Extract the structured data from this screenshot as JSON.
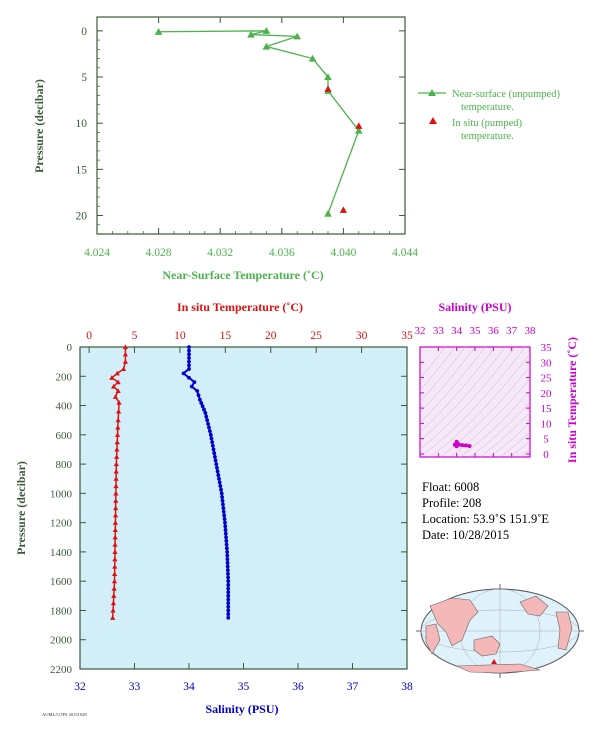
{
  "colors": {
    "axis_dark": "#3a5a3a",
    "near_surface_green": "#4bb34b",
    "in_situ_red": "#dd1111",
    "salinity_blue": "#0000cc",
    "ts_magenta": "#cc00cc",
    "profile_bg": "#d2eef8",
    "ts_bg": "#f6e8f8",
    "map_land": "#f4b8b8",
    "map_ocean": "#dff1fa"
  },
  "top_chart": {
    "xlabel": "Near-Surface Temperature (˚C)",
    "ylabel": "Pressure (decibar)",
    "xticks": [
      "4.024",
      "4.028",
      "4.032",
      "4.036",
      "4.040",
      "4.044"
    ],
    "yticks": [
      "0",
      "5",
      "10",
      "15",
      "20"
    ],
    "legend": {
      "near_surface": [
        "Near-surface (unpumped)",
        "temperature."
      ],
      "in_situ": [
        "In situ (pumped)",
        "temperature."
      ]
    }
  },
  "profile_chart": {
    "top_axis_label": "In situ Temperature (˚C)",
    "bottom_axis_label": "Salinity (PSU)",
    "ylabel": "Pressure (decibar)",
    "temp_ticks": [
      "0",
      "5",
      "10",
      "15",
      "20",
      "25",
      "30",
      "35"
    ],
    "sal_ticks": [
      "32",
      "33",
      "34",
      "35",
      "36",
      "37",
      "38"
    ],
    "pressure_ticks": [
      "0",
      "200",
      "400",
      "600",
      "800",
      "1000",
      "1200",
      "1400",
      "1600",
      "1800",
      "2000",
      "2200"
    ]
  },
  "ts_chart": {
    "top_label": "Salinity (PSU)",
    "right_label": "In situ Temperature (˚C)",
    "sal_ticks": [
      "32",
      "33",
      "34",
      "35",
      "36",
      "37",
      "38"
    ],
    "temp_ticks": [
      "35",
      "30",
      "25",
      "20",
      "15",
      "10",
      "5",
      "0"
    ]
  },
  "info": {
    "float": "Float:  6008",
    "profile": "Profile:  208",
    "location": "Location:  53.9˚S  151.9˚E",
    "date": "Date:  10/28/2015"
  },
  "footer_tag": "AOML/GTPS 20151028",
  "chart_data": [
    {
      "type": "scatter",
      "title": "",
      "xlabel": "Near-Surface Temperature (˚C)",
      "ylabel": "Pressure (decibar)",
      "xlim": [
        4.024,
        4.044
      ],
      "ylim": [
        22,
        -1.5
      ],
      "series": [
        {
          "name": "Near-surface (unpumped) temperature.",
          "mode": "line+triangle",
          "x": [
            4.028,
            4.035,
            4.034,
            4.037,
            4.035,
            4.038,
            4.039,
            4.039,
            4.041,
            4.039
          ],
          "y": [
            0.1,
            0.0,
            0.4,
            0.6,
            1.7,
            3.0,
            5.0,
            6.5,
            10.8,
            19.8
          ]
        },
        {
          "name": "In situ (pumped) temperature.",
          "mode": "triangle",
          "x": [
            4.039,
            4.041,
            4.04
          ],
          "y": [
            6.3,
            10.3,
            19.4
          ]
        }
      ]
    },
    {
      "type": "line",
      "title": "",
      "ylabel": "Pressure (decibar)",
      "ylim": [
        2200,
        0
      ],
      "series": [
        {
          "name": "In situ Temperature (˚C)",
          "axis": "top",
          "xlim": [
            -1,
            35
          ],
          "x": [
            4.0,
            4.0,
            4.0,
            3.8,
            3.1,
            2.5,
            3.2,
            2.7,
            3.2,
            2.9,
            3.3,
            3.2,
            3.0,
            2.9,
            2.8,
            2.6
          ],
          "y": [
            0,
            50,
            100,
            150,
            180,
            210,
            240,
            270,
            300,
            340,
            380,
            500,
            800,
            1200,
            1600,
            1850
          ]
        },
        {
          "name": "Salinity (PSU)",
          "axis": "bottom",
          "xlim": [
            32,
            38
          ],
          "x": [
            34.0,
            34.0,
            34.0,
            34.0,
            33.9,
            34.0,
            34.1,
            34.05,
            34.15,
            34.2,
            34.3,
            34.4,
            34.5,
            34.6,
            34.66,
            34.7,
            34.72,
            34.72
          ],
          "y": [
            0,
            50,
            100,
            150,
            180,
            210,
            240,
            270,
            300,
            360,
            450,
            600,
            800,
            1000,
            1200,
            1400,
            1600,
            1850
          ]
        }
      ]
    },
    {
      "type": "scatter",
      "title": "",
      "xlabel": "Salinity (PSU)",
      "ylabel": "In situ Temperature (˚C)",
      "xlim": [
        32,
        38
      ],
      "ylim": [
        -1,
        35
      ],
      "series": [
        {
          "name": "T-S",
          "x": [
            33.9,
            34.0,
            34.0,
            34.1,
            34.3,
            34.5,
            34.7
          ],
          "y": [
            3.0,
            4.0,
            2.5,
            3.2,
            2.9,
            2.8,
            2.6
          ]
        }
      ]
    }
  ]
}
